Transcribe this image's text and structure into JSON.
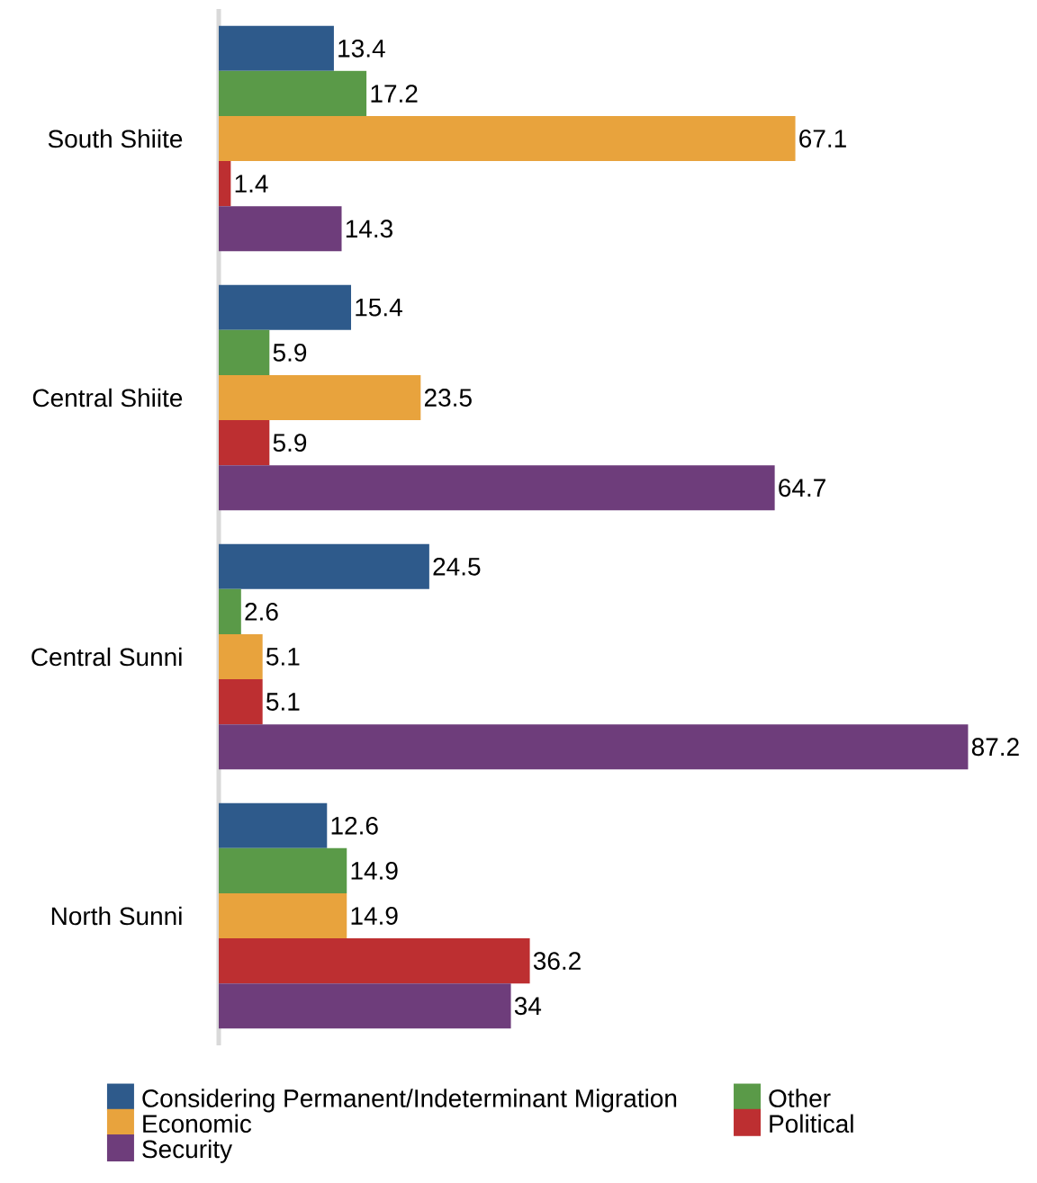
{
  "chart_data": {
    "type": "bar",
    "orientation": "horizontal",
    "categories": [
      "South Shiite",
      "Central Shiite",
      "Central Sunni",
      "North Sunni"
    ],
    "series": [
      {
        "name": "Considering Permanent/Indeterminant Migration",
        "color": "#2e5a8b",
        "values": [
          13.4,
          15.4,
          24.5,
          12.6
        ]
      },
      {
        "name": "Other",
        "color": "#5a9a48",
        "values": [
          17.2,
          5.9,
          2.6,
          14.9
        ]
      },
      {
        "name": "Economic",
        "color": "#e8a33d",
        "values": [
          67.1,
          23.5,
          5.1,
          14.9
        ]
      },
      {
        "name": "Political",
        "color": "#bd2f31",
        "values": [
          1.4,
          5.9,
          5.1,
          36.2
        ]
      },
      {
        "name": "Security",
        "color": "#6e3d7b",
        "values": [
          14.3,
          64.7,
          87.2,
          34
        ]
      }
    ],
    "data_labels": true,
    "legend": "bottom"
  }
}
